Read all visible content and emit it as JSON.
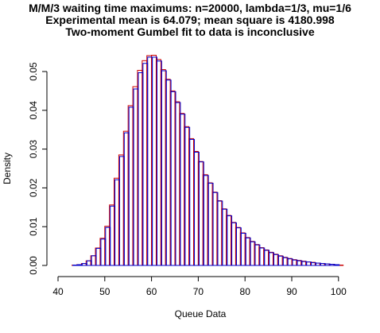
{
  "title_lines": [
    "M/M/3 waiting time maximums: n=20000, lambda=1/3, mu=1/6",
    "Experimental mean is 64.079; mean square is 4180.998",
    "Two-moment Gumbel fit to data is inconclusive"
  ],
  "chart_data": {
    "type": "bar",
    "title": "M/M/3 waiting time maximums: n=20000, lambda=1/3, mu=1/6\nExperimental mean is 64.079; mean square is 4180.998\nTwo-moment Gumbel fit to data is inconclusive",
    "xlabel": "Queue Data",
    "ylabel": "Density",
    "xlim": [
      40,
      101
    ],
    "ylim": [
      0,
      0.054
    ],
    "x_ticks": [
      "40",
      "50",
      "60",
      "70",
      "80",
      "90",
      "100"
    ],
    "y_ticks": [
      "0.00",
      "0.01",
      "0.02",
      "0.03",
      "0.04",
      "0.05"
    ],
    "bin_width": 1,
    "bin_starts": [
      40,
      41,
      42,
      43,
      44,
      45,
      46,
      47,
      48,
      49,
      50,
      51,
      52,
      53,
      54,
      55,
      56,
      57,
      58,
      59,
      60,
      61,
      62,
      63,
      64,
      65,
      66,
      67,
      68,
      69,
      70,
      71,
      72,
      73,
      74,
      75,
      76,
      77,
      78,
      79,
      80,
      81,
      82,
      83,
      84,
      85,
      86,
      87,
      88,
      89,
      90,
      91,
      92,
      93,
      94,
      95,
      96,
      97,
      98,
      99,
      100
    ],
    "series": [
      {
        "name": "",
        "color": "#0000cc",
        "values": [
          0.0,
          0.0,
          0.0,
          0.0001,
          0.0002,
          0.0005,
          0.0012,
          0.0025,
          0.0044,
          0.0068,
          0.0098,
          0.0153,
          0.0221,
          0.0281,
          0.0342,
          0.0408,
          0.0455,
          0.0497,
          0.0521,
          0.0537,
          0.0537,
          0.0527,
          0.0502,
          0.0478,
          0.0448,
          0.042,
          0.039,
          0.0356,
          0.0325,
          0.0292,
          0.0267,
          0.0232,
          0.0212,
          0.0188,
          0.0166,
          0.0145,
          0.0128,
          0.011,
          0.0097,
          0.0083,
          0.0071,
          0.0061,
          0.0053,
          0.0045,
          0.0039,
          0.0033,
          0.0028,
          0.0024,
          0.002,
          0.0017,
          0.0014,
          0.0012,
          0.001,
          0.0009,
          0.0007,
          0.0006,
          0.0005,
          0.0004,
          0.0003,
          0.0002,
          0.0
        ]
      },
      {
        "name": "",
        "color": "#cc0000",
        "values": [
          0.0,
          0.0,
          0.0,
          0.0001,
          0.0002,
          0.0005,
          0.0012,
          0.0025,
          0.0045,
          0.007,
          0.0101,
          0.0156,
          0.0225,
          0.0285,
          0.0346,
          0.0412,
          0.0461,
          0.0503,
          0.0528,
          0.0541,
          0.0542,
          0.0531,
          0.0505,
          0.048,
          0.045,
          0.0422,
          0.0392,
          0.0358,
          0.0327,
          0.0294,
          0.0268,
          0.0234,
          0.0213,
          0.0189,
          0.0167,
          0.0146,
          0.0129,
          0.0111,
          0.0098,
          0.0084,
          0.0072,
          0.0062,
          0.0054,
          0.0046,
          0.004,
          0.0034,
          0.0029,
          0.0025,
          0.0021,
          0.0018,
          0.0015,
          0.0013,
          0.0011,
          0.0009,
          0.0008,
          0.0006,
          0.0005,
          0.0004,
          0.0003,
          0.0002,
          0.0001
        ]
      }
    ]
  }
}
